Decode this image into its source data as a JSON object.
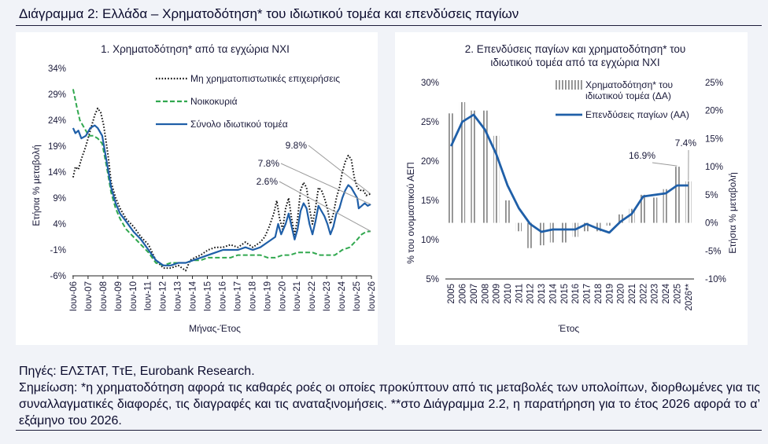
{
  "page": {
    "title": "Διάγραμμα 2: Ελλάδα – Χρηματοδότηση* του ιδιωτικού τομέα και επενδύσεις παγίων",
    "sources": "Πηγές: ΕΛΣΤΑΤ, ΤτΕ, Eurobank Research.",
    "note": "Σημείωση: *η χρηματοδότηση αφορά τις καθαρές ροές οι οποίες προκύπτουν από τις μεταβολές των υπολοίπων, διορθωμένες για τις συναλλαγματικές διαφορές, τις διαγραφές και τις αναταξινομήσεις. **στο Διάγραμμα 2.2, η παρατήρηση για το έτος 2026 αφορά το α’ εξάμηνο του 2026."
  },
  "chart_data": [
    {
      "type": "line",
      "title": "1. Χρηματοδότηση* από τα εγχώρια ΝΧΙ",
      "xlabel": "Μήνας-Έτος",
      "ylabel": "Ετήσια % μεταβολή",
      "x_tick_labels": [
        "Ιουν-06",
        "Ιουν-07",
        "Ιουν-08",
        "Ιουν-09",
        "Ιουν-10",
        "Ιουν-11",
        "Ιουν-12",
        "Ιουν-13",
        "Ιουν-14",
        "Ιουν-15",
        "Ιουν-16",
        "Ιουν-17",
        "Ιουν-18",
        "Ιουν-19",
        "Ιουν-20",
        "Ιουν-21",
        "Ιουν-22",
        "Ιουν-23",
        "Ιουν-24",
        "Ιουν-25",
        "Ιουν-26"
      ],
      "y_tick_labels": [
        "-6%",
        "-1%",
        "4%",
        "9%",
        "14%",
        "19%",
        "24%",
        "29%",
        "34%"
      ],
      "ylim": [
        -6,
        34
      ],
      "xlim": [
        2006.4,
        2026.45
      ],
      "legend_position": "top-center",
      "annotations": [
        {
          "text": "2.6%",
          "x": 2026.4,
          "y": 2.6
        },
        {
          "text": "7.8%",
          "x": 2026.4,
          "y": 7.8
        },
        {
          "text": "9.8%",
          "x": 2026.4,
          "y": 9.8
        }
      ],
      "series": [
        {
          "name": "Μη χρηματοπιστωτικές επιχειρήσεις",
          "style": "dotted",
          "color": "#111111",
          "points": [
            [
              2006.45,
              13
            ],
            [
              2006.6,
              15
            ],
            [
              2006.8,
              14.5
            ],
            [
              2007.0,
              16.5
            ],
            [
              2007.3,
              19
            ],
            [
              2007.6,
              22
            ],
            [
              2007.9,
              25
            ],
            [
              2008.1,
              26.3
            ],
            [
              2008.3,
              25.5
            ],
            [
              2008.5,
              23
            ],
            [
              2008.8,
              17
            ],
            [
              2009.0,
              12
            ],
            [
              2009.3,
              9
            ],
            [
              2009.6,
              7
            ],
            [
              2010.0,
              5
            ],
            [
              2010.5,
              3.5
            ],
            [
              2011.0,
              1.5
            ],
            [
              2011.5,
              0
            ],
            [
              2012.0,
              -3
            ],
            [
              2012.5,
              -4.5
            ],
            [
              2013.0,
              -4.5
            ],
            [
              2013.5,
              -4
            ],
            [
              2014.0,
              -5
            ],
            [
              2014.3,
              -3
            ],
            [
              2014.6,
              -2.5
            ],
            [
              2015.0,
              -2
            ],
            [
              2015.5,
              -1
            ],
            [
              2016.0,
              -0.5
            ],
            [
              2016.5,
              -0.5
            ],
            [
              2017.0,
              0
            ],
            [
              2017.5,
              -0.5
            ],
            [
              2018.0,
              0.5
            ],
            [
              2018.5,
              -0.5
            ],
            [
              2019.0,
              0.5
            ],
            [
              2019.3,
              1.5
            ],
            [
              2019.6,
              3.5
            ],
            [
              2019.9,
              6
            ],
            [
              2020.1,
              8.5
            ],
            [
              2020.3,
              5
            ],
            [
              2020.5,
              3
            ],
            [
              2020.7,
              7
            ],
            [
              2020.9,
              9
            ],
            [
              2021.1,
              5
            ],
            [
              2021.3,
              2
            ],
            [
              2021.5,
              5
            ],
            [
              2021.7,
              10.5
            ],
            [
              2021.9,
              12
            ],
            [
              2022.1,
              11
            ],
            [
              2022.3,
              7
            ],
            [
              2022.5,
              4
            ],
            [
              2022.7,
              7
            ],
            [
              2022.9,
              11
            ],
            [
              2023.1,
              10.5
            ],
            [
              2023.3,
              9
            ],
            [
              2023.5,
              7
            ],
            [
              2023.7,
              4
            ],
            [
              2023.9,
              6
            ],
            [
              2024.1,
              9
            ],
            [
              2024.3,
              11
            ],
            [
              2024.5,
              14
            ],
            [
              2024.7,
              16
            ],
            [
              2024.9,
              17.2
            ],
            [
              2025.1,
              16.5
            ],
            [
              2025.3,
              13
            ],
            [
              2025.5,
              11
            ],
            [
              2025.7,
              10.5
            ],
            [
              2025.9,
              10.5
            ],
            [
              2026.1,
              9.5
            ],
            [
              2026.4,
              9.8
            ]
          ]
        },
        {
          "name": "Νοικοκυριά",
          "style": "dashed",
          "color": "#31a84f",
          "points": [
            [
              2006.45,
              30
            ],
            [
              2006.7,
              26.5
            ],
            [
              2006.9,
              24
            ],
            [
              2007.2,
              22.5
            ],
            [
              2007.5,
              21
            ],
            [
              2007.8,
              21
            ],
            [
              2008.1,
              20.5
            ],
            [
              2008.4,
              19.5
            ],
            [
              2008.7,
              15
            ],
            [
              2009.0,
              10
            ],
            [
              2009.3,
              7
            ],
            [
              2009.6,
              5
            ],
            [
              2010.0,
              3
            ],
            [
              2010.5,
              1.5
            ],
            [
              2011.0,
              0
            ],
            [
              2011.5,
              -1.5
            ],
            [
              2012.0,
              -3.5
            ],
            [
              2012.5,
              -4
            ],
            [
              2013.0,
              -3.5
            ],
            [
              2013.5,
              -3.5
            ],
            [
              2014.0,
              -3.5
            ],
            [
              2014.5,
              -3
            ],
            [
              2015.0,
              -3
            ],
            [
              2015.5,
              -2.5
            ],
            [
              2016.0,
              -2.5
            ],
            [
              2016.5,
              -2.5
            ],
            [
              2017.0,
              -2.5
            ],
            [
              2017.5,
              -2
            ],
            [
              2018.0,
              -2
            ],
            [
              2018.5,
              -2
            ],
            [
              2019.0,
              -2
            ],
            [
              2019.5,
              -2.5
            ],
            [
              2020.0,
              -2.5
            ],
            [
              2020.5,
              -2
            ],
            [
              2021.0,
              -2
            ],
            [
              2021.5,
              -1.5
            ],
            [
              2022.0,
              -1.5
            ],
            [
              2022.5,
              -1.5
            ],
            [
              2023.0,
              -2
            ],
            [
              2023.5,
              -2
            ],
            [
              2024.0,
              -2
            ],
            [
              2024.5,
              -1
            ],
            [
              2025.0,
              -0.5
            ],
            [
              2025.5,
              1
            ],
            [
              2025.8,
              2
            ],
            [
              2026.1,
              2.5
            ],
            [
              2026.4,
              2.6
            ]
          ]
        },
        {
          "name": "Σύνολο ιδιωτικού τομέα",
          "style": "solid",
          "color": "#1f5fa8",
          "points": [
            [
              2006.45,
              22.5
            ],
            [
              2006.6,
              21.5
            ],
            [
              2006.8,
              22
            ],
            [
              2007.0,
              20.5
            ],
            [
              2007.3,
              21
            ],
            [
              2007.6,
              22.5
            ],
            [
              2007.9,
              23
            ],
            [
              2008.1,
              22.5
            ],
            [
              2008.4,
              21
            ],
            [
              2008.7,
              16
            ],
            [
              2009.0,
              11
            ],
            [
              2009.3,
              8
            ],
            [
              2009.6,
              6
            ],
            [
              2010.0,
              4.5
            ],
            [
              2010.5,
              2.5
            ],
            [
              2011.0,
              1
            ],
            [
              2011.5,
              -1
            ],
            [
              2012.0,
              -3
            ],
            [
              2012.5,
              -4
            ],
            [
              2013.0,
              -4
            ],
            [
              2013.5,
              -3.5
            ],
            [
              2014.0,
              -3.5
            ],
            [
              2014.5,
              -3
            ],
            [
              2015.0,
              -2.5
            ],
            [
              2015.5,
              -2
            ],
            [
              2016.0,
              -1.5
            ],
            [
              2016.5,
              -1
            ],
            [
              2017.0,
              -1
            ],
            [
              2017.5,
              -1
            ],
            [
              2018.0,
              -0.5
            ],
            [
              2018.5,
              -1
            ],
            [
              2019.0,
              -0.5
            ],
            [
              2019.5,
              0.5
            ],
            [
              2020.0,
              1.5
            ],
            [
              2020.2,
              4
            ],
            [
              2020.4,
              2
            ],
            [
              2020.7,
              4
            ],
            [
              2020.9,
              6
            ],
            [
              2021.1,
              3.5
            ],
            [
              2021.3,
              1
            ],
            [
              2021.5,
              3
            ],
            [
              2021.7,
              6.5
            ],
            [
              2021.9,
              8
            ],
            [
              2022.1,
              7
            ],
            [
              2022.3,
              4
            ],
            [
              2022.5,
              2
            ],
            [
              2022.7,
              4.5
            ],
            [
              2022.9,
              7.5
            ],
            [
              2023.1,
              6.5
            ],
            [
              2023.3,
              5.5
            ],
            [
              2023.5,
              4
            ],
            [
              2023.7,
              2
            ],
            [
              2023.9,
              3.5
            ],
            [
              2024.1,
              6
            ],
            [
              2024.3,
              7
            ],
            [
              2024.5,
              9
            ],
            [
              2024.7,
              10.5
            ],
            [
              2024.9,
              11.5
            ],
            [
              2025.1,
              11
            ],
            [
              2025.3,
              10
            ],
            [
              2025.5,
              9
            ],
            [
              2025.6,
              7
            ],
            [
              2025.8,
              7.5
            ],
            [
              2026.0,
              8
            ],
            [
              2026.2,
              7.5
            ],
            [
              2026.4,
              7.8
            ]
          ]
        }
      ]
    },
    {
      "type": "bar",
      "title": "2. Επενδύσεις παγίων και χρηματοδότηση* του ιδιωτικού τομέα από τα εγχώρια ΝΧΙ",
      "xlabel": "Έτος",
      "ylabel": "% του ονομαστικού ΑΕΠ",
      "ylabel_right": "Ετήσια % μεταβολή",
      "categories": [
        "2005",
        "2006",
        "2007",
        "2008",
        "2009",
        "2010",
        "2011",
        "2012",
        "2013",
        "2014",
        "2015",
        "2016",
        "2017",
        "2018",
        "2019",
        "2020",
        "2021",
        "2022",
        "2023",
        "2024",
        "2025",
        "2026**"
      ],
      "y_tick_labels": [
        "5%",
        "10%",
        "15%",
        "20%",
        "25%",
        "30%"
      ],
      "ylim": [
        5,
        30
      ],
      "y2_tick_labels": [
        "-10%",
        "-5%",
        "0%",
        "5%",
        "10%",
        "15%",
        "20%",
        "25%"
      ],
      "y2lim": [
        -10,
        25
      ],
      "legend_position": "top-right",
      "annotations": [
        {
          "text": "16.9%",
          "category": "2025"
        },
        {
          "text": "7.4%",
          "category": "2026**"
        }
      ],
      "series": [
        {
          "name": "Χρηματοδότηση* του ιδιωτικού τομέα (ΔΑ)",
          "axis": "right",
          "style": "hatched bars",
          "color": "#8c8c8c",
          "values": [
            19.5,
            21.5,
            20,
            20,
            15.5,
            4,
            -1.5,
            -4.5,
            -4,
            -3.5,
            -3.5,
            -2.5,
            -1.5,
            -1.5,
            -0.5,
            1.5,
            2.5,
            5,
            4.5,
            6,
            10,
            7.4
          ]
        },
        {
          "name": "Επενδύσεις παγίων (ΑΑ)",
          "axis": "left",
          "style": "solid line",
          "color": "#1f5fa8",
          "values": [
            21.9,
            25,
            25.9,
            24,
            20.9,
            16.9,
            14,
            12,
            11,
            11.3,
            11.3,
            11.3,
            12,
            11.4,
            10.9,
            12.3,
            13.3,
            15.5,
            15.7,
            15.9,
            16.9,
            16.9
          ]
        }
      ]
    }
  ]
}
